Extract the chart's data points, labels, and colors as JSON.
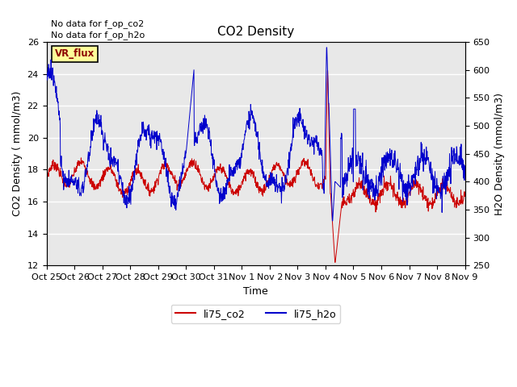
{
  "title": "CO2 Density",
  "xlabel": "Time",
  "ylabel_left": "CO2 Density ( mmol/m3)",
  "ylabel_right": "H2O Density (mmol/m3)",
  "ylim_left": [
    12,
    26
  ],
  "ylim_right": [
    250,
    650
  ],
  "yticks_left": [
    12,
    14,
    16,
    18,
    20,
    22,
    24,
    26
  ],
  "yticks_right": [
    250,
    300,
    350,
    400,
    450,
    500,
    550,
    600,
    650
  ],
  "xtick_labels": [
    "Oct 25",
    "Oct 26",
    "Oct 27",
    "Oct 28",
    "Oct 29",
    "Oct 30",
    "Oct 31",
    "Nov 1",
    "Nov 2",
    "Nov 3",
    "Nov 4",
    "Nov 5",
    "Nov 6",
    "Nov 7",
    "Nov 8",
    "Nov 9"
  ],
  "color_co2": "#cc0000",
  "color_h2o": "#0000cc",
  "bg_color": "#e8e8e8",
  "no_data_text1": "No data for f_op_co2",
  "no_data_text2": "No data for f_op_h2o",
  "vr_flux_label": "VR_flux",
  "legend_labels": [
    "li75_co2",
    "li75_h2o"
  ],
  "title_fontsize": 11,
  "label_fontsize": 9,
  "tick_fontsize": 8
}
